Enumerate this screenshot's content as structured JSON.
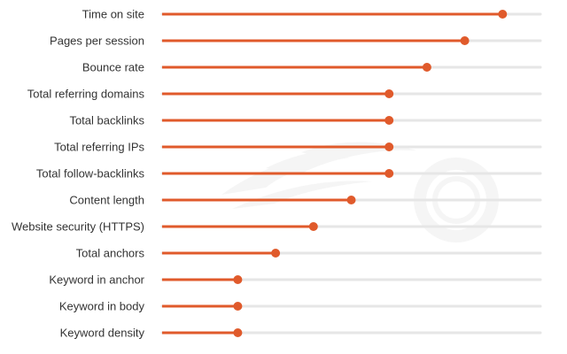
{
  "chart_data": {
    "type": "lollipop",
    "categories": [
      "Time on site",
      "Pages per session",
      "Bounce rate",
      "Total referring domains",
      "Total backlinks",
      "Total referring IPs",
      "Total follow-backlinks",
      "Content length",
      "Website security (HTTPS)",
      "Total anchors",
      "Keyword in anchor",
      "Keyword in body",
      "Keyword density"
    ],
    "values": [
      9,
      8,
      7,
      6,
      6,
      6,
      6,
      5,
      4,
      3,
      2,
      2,
      2
    ],
    "xlim": [
      0,
      10
    ],
    "grid": false,
    "title": "",
    "xlabel": "",
    "ylabel": ""
  },
  "colors": {
    "lollipop": "#e05a2b",
    "track": "#e6e6e6",
    "label": "#333333",
    "watermark": "#9a9a9a"
  },
  "watermark": {
    "icon": "semrush-logo-icon"
  }
}
